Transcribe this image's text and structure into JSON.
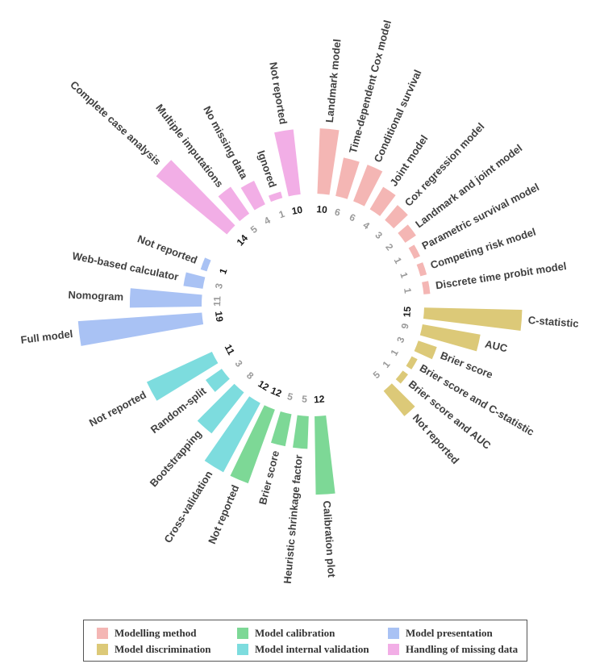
{
  "chart_data": {
    "type": "circular_bar",
    "groups": [
      {
        "name": "Modelling method",
        "color": "#f4b6b4",
        "items": [
          {
            "label": "Landmark model",
            "value": 10,
            "highlight": true
          },
          {
            "label": "Time-dependent Cox model",
            "value": 6
          },
          {
            "label": "Conditional survival",
            "value": 6
          },
          {
            "label": "Joint model",
            "value": 4
          },
          {
            "label": "Cox regression model",
            "value": 3
          },
          {
            "label": "Landmark and joint model",
            "value": 2
          },
          {
            "label": "Parametric survival model",
            "value": 1
          },
          {
            "label": "Competing risk model",
            "value": 1
          },
          {
            "label": "Discrete time probit model",
            "value": 1
          }
        ]
      },
      {
        "name": "Model discrimination",
        "color": "#dcc978",
        "items": [
          {
            "label": "C-statistic",
            "value": 15,
            "highlight": true
          },
          {
            "label": "AUC",
            "value": 9
          },
          {
            "label": "Brier score",
            "value": 3
          },
          {
            "label": "Brier score and C-statistic",
            "value": 1
          },
          {
            "label": "Brier score and AUC",
            "value": 1
          },
          {
            "label": "Not reported",
            "value": 5
          }
        ]
      },
      {
        "name": "Model calibration",
        "color": "#7dd896",
        "items": [
          {
            "label": "Calibration plot",
            "value": 12,
            "highlight": true
          },
          {
            "label": "Heuristic shrinkage factor",
            "value": 5
          },
          {
            "label": "Brier score",
            "value": 5
          },
          {
            "label": "Not reported",
            "value": 12,
            "highlight": true
          }
        ]
      },
      {
        "name": "Model internal validation",
        "color": "#7ddcde",
        "items": [
          {
            "label": "Cross-validation",
            "value": 12,
            "highlight": true
          },
          {
            "label": "Bootstrapping",
            "value": 8
          },
          {
            "label": "Random-split",
            "value": 3
          },
          {
            "label": "Not reported",
            "value": 11,
            "highlight": true
          }
        ]
      },
      {
        "name": "Model presentation",
        "color": "#a9c2f4",
        "items": [
          {
            "label": "Full model",
            "value": 19,
            "highlight": true
          },
          {
            "label": "Nomogram",
            "value": 11
          },
          {
            "label": "Web-based calculator",
            "value": 3
          },
          {
            "label": "Not reported",
            "value": 1,
            "highlight": true
          }
        ]
      },
      {
        "name": "Handling of missing data",
        "color": "#f2aee6",
        "items": [
          {
            "label": "Complete case analysis",
            "value": 14,
            "highlight": true
          },
          {
            "label": "Multiple imputations",
            "value": 5
          },
          {
            "label": "No missing data",
            "value": 4
          },
          {
            "label": "Ignored",
            "value": 1
          },
          {
            "label": "Not reported",
            "value": 10,
            "highlight": true
          }
        ]
      }
    ],
    "legend": [
      [
        "Modelling method",
        "Model calibration",
        "Model presentation"
      ],
      [
        "Model discrimination",
        "Model internal validation",
        "Handling of missing data"
      ]
    ],
    "legend_position": "bottom",
    "highlight_label_color": "#1a1a1a",
    "normal_label_color": "#9a9a9a"
  }
}
